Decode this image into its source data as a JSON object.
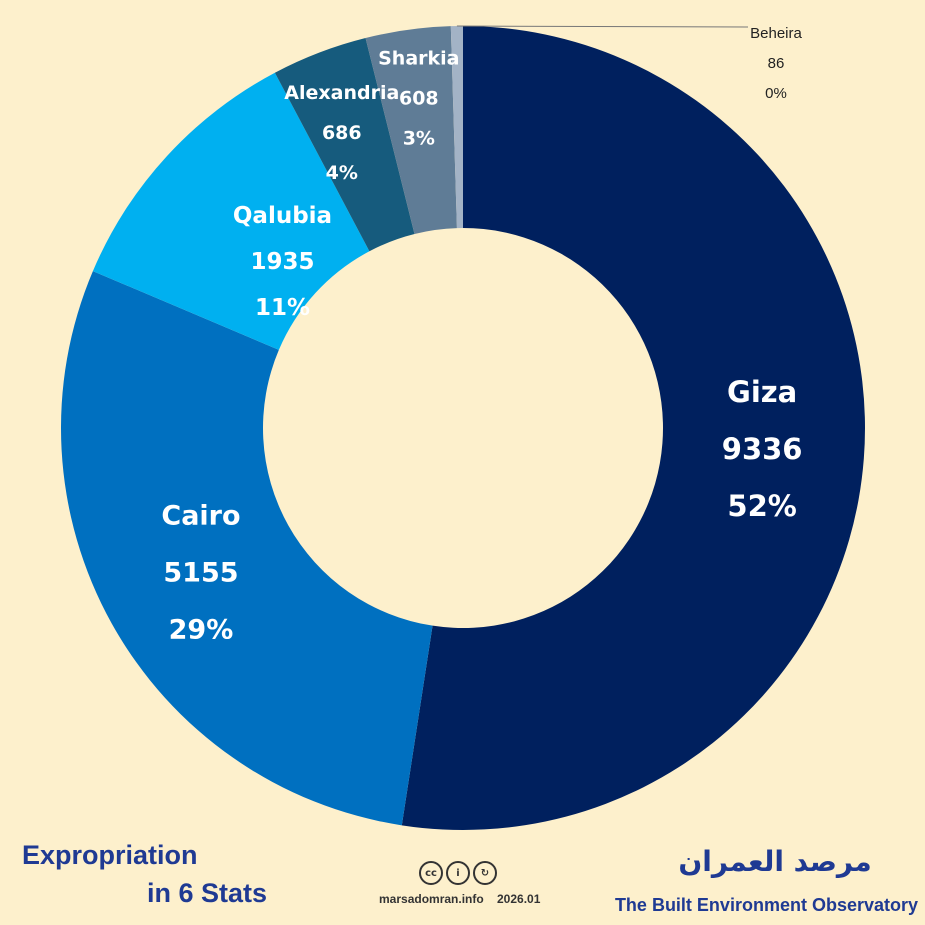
{
  "chart_data": {
    "type": "pie",
    "donut": true,
    "categories": [
      "Giza",
      "Cairo",
      "Qalubia",
      "Alexandria",
      "Sharkia",
      "Beheira"
    ],
    "values": [
      9336,
      5155,
      1935,
      686,
      608,
      86
    ],
    "percent_labels": [
      "52%",
      "29%",
      "11%",
      "4%",
      "3%",
      "0%"
    ],
    "colors": [
      "#00205e",
      "#0070c0",
      "#00b0f0",
      "#165b7d",
      "#5f7c96",
      "#a3b3c6"
    ],
    "legend": "none"
  },
  "title": {
    "line1": "Expropriation",
    "line2": "in 6 Stats"
  },
  "footer": {
    "license_icons": [
      "cc-icon",
      "by-person-icon",
      "sa-share-alike-icon"
    ],
    "license_glyphs": [
      "cc",
      "i",
      "↻"
    ],
    "site": "marsadomran.info",
    "date": "2026.01"
  },
  "branding": {
    "name_ar": "مرصد العمران",
    "name_en": "The Built Environment Observatory"
  }
}
